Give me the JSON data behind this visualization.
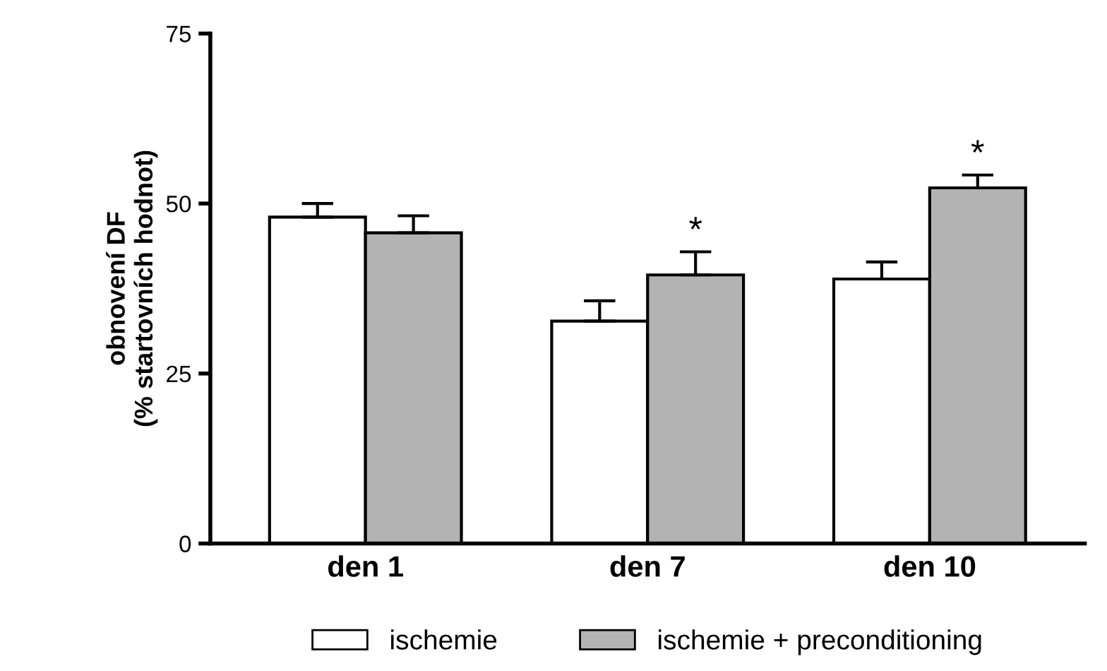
{
  "chart_data": {
    "type": "bar",
    "ylabel": "obnovení DF\n(% startovních hodnot)",
    "categories": [
      "den 1",
      "den 7",
      "den 10"
    ],
    "series": [
      {
        "name": "ischemie",
        "color": "#ffffff",
        "values": [
          48,
          32.7,
          38.9
        ],
        "errors": [
          [
            48,
            50
          ],
          [
            32.7,
            35.7
          ],
          [
            38.9,
            41.4
          ]
        ]
      },
      {
        "name": "ischemie + preconditioning",
        "color": "#b3b3b3",
        "values": [
          45.7,
          39.5,
          52.3
        ],
        "errors": [
          [
            45.7,
            48.2
          ],
          [
            39.5,
            42.9
          ],
          [
            52.3,
            54.2
          ]
        ]
      }
    ],
    "ylim": [
      0,
      75
    ],
    "yticks": [
      0,
      25,
      50,
      75
    ],
    "grid": false,
    "legend": "bottom",
    "annotations": [
      {
        "text": "*",
        "x": "den 7",
        "y": 39.5
      },
      {
        "text": "*",
        "x": "den 10",
        "y": 52.3
      }
    ]
  }
}
